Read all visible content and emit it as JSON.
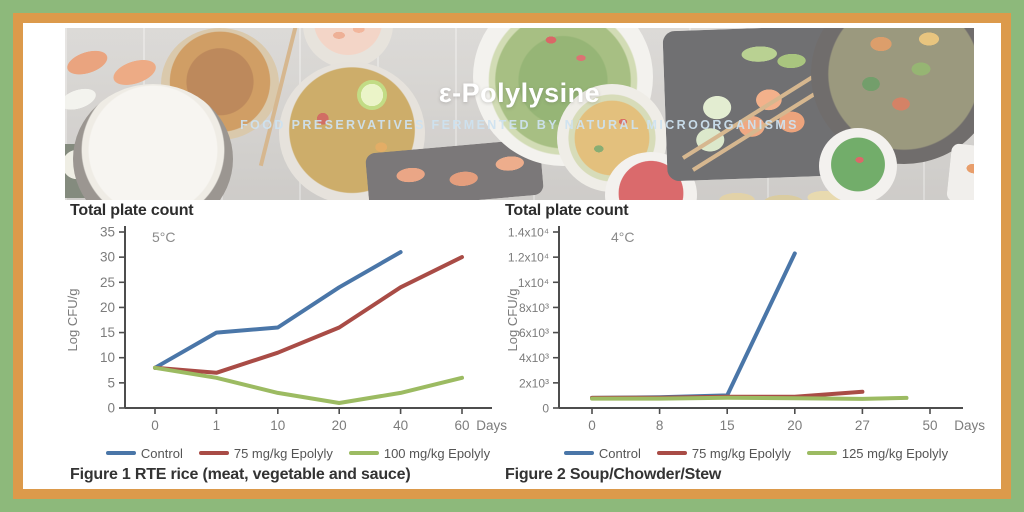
{
  "banner": {
    "title": "ε-Polylysine",
    "subtitle": "FOOD PRESERVATIVES FERMENTED BY NATURAL MICROORGANISMS"
  },
  "colors": {
    "border_outer_green": "#8db97b",
    "border_inner_orange": "#dc9a4b",
    "control_blue": "#4a76a8",
    "epolyly_red": "#a94c46",
    "epolyly_green": "#9cbb62"
  },
  "chart_data": [
    {
      "type": "line",
      "title": "Total plate count",
      "annotation": "5°C",
      "ylabel": "Log CFU/g",
      "x_unit": "Days",
      "ylim": [
        0,
        35
      ],
      "yticks": {
        "values": [
          0,
          5,
          10,
          15,
          20,
          25,
          30,
          35
        ],
        "labels": [
          "0",
          "5",
          "10",
          "15",
          "20",
          "25",
          "30",
          "35"
        ]
      },
      "x_tick_values": [
        0,
        1,
        10,
        20,
        40,
        60
      ],
      "x_tick_labels": [
        "0",
        "1",
        "10",
        "20",
        "40",
        "60"
      ],
      "series": [
        {
          "name": "Control",
          "color": "#4a76a8",
          "points": [
            [
              0,
              8
            ],
            [
              1,
              15
            ],
            [
              10,
              16
            ],
            [
              20,
              24
            ],
            [
              40,
              31
            ]
          ]
        },
        {
          "name": "75 mg/kg Epolyly",
          "color": "#a94c46",
          "points": [
            [
              0,
              8
            ],
            [
              1,
              7
            ],
            [
              10,
              11
            ],
            [
              20,
              16
            ],
            [
              40,
              24
            ],
            [
              60,
              30
            ]
          ]
        },
        {
          "name": "100 mg/kg Epolyly",
          "color": "#9cbb62",
          "points": [
            [
              0,
              8
            ],
            [
              1,
              6
            ],
            [
              10,
              3
            ],
            [
              20,
              1
            ],
            [
              40,
              3
            ],
            [
              60,
              6
            ]
          ]
        }
      ],
      "caption": "Figure 1 RTE rice (meat, vegetable and sauce)"
    },
    {
      "type": "line",
      "title": "Total plate count",
      "annotation": "4°C",
      "ylabel": "Log CFU/g",
      "x_unit": "Days",
      "ylim": [
        0,
        14000
      ],
      "yticks": {
        "values": [
          0,
          2000,
          4000,
          6000,
          8000,
          10000,
          12000,
          14000
        ],
        "labels": [
          "0",
          "2x10³",
          "4x10³",
          "6x10³",
          "8x10³",
          "1x10⁴",
          "1.2x10⁴",
          "1.4x10⁴"
        ]
      },
      "x_tick_values": [
        0,
        8,
        15,
        20,
        27,
        50
      ],
      "x_tick_labels": [
        "0",
        "8",
        "15",
        "20",
        "27",
        "50"
      ],
      "series": [
        {
          "name": "Control",
          "color": "#4a76a8",
          "points": [
            [
              0,
              800
            ],
            [
              8,
              850
            ],
            [
              15,
              1000
            ],
            [
              20,
              12300
            ]
          ]
        },
        {
          "name": "75 mg/kg Epolyly",
          "color": "#a94c46",
          "points": [
            [
              0,
              800
            ],
            [
              8,
              820
            ],
            [
              15,
              900
            ],
            [
              20,
              900
            ],
            [
              27,
              1300
            ]
          ]
        },
        {
          "name": "125 mg/kg Epolyly",
          "color": "#9cbb62",
          "points": [
            [
              0,
              750
            ],
            [
              8,
              750
            ],
            [
              15,
              820
            ],
            [
              20,
              780
            ],
            [
              27,
              720
            ],
            [
              42,
              800
            ]
          ]
        }
      ],
      "caption": "Figure 2 Soup/Chowder/Stew"
    }
  ]
}
